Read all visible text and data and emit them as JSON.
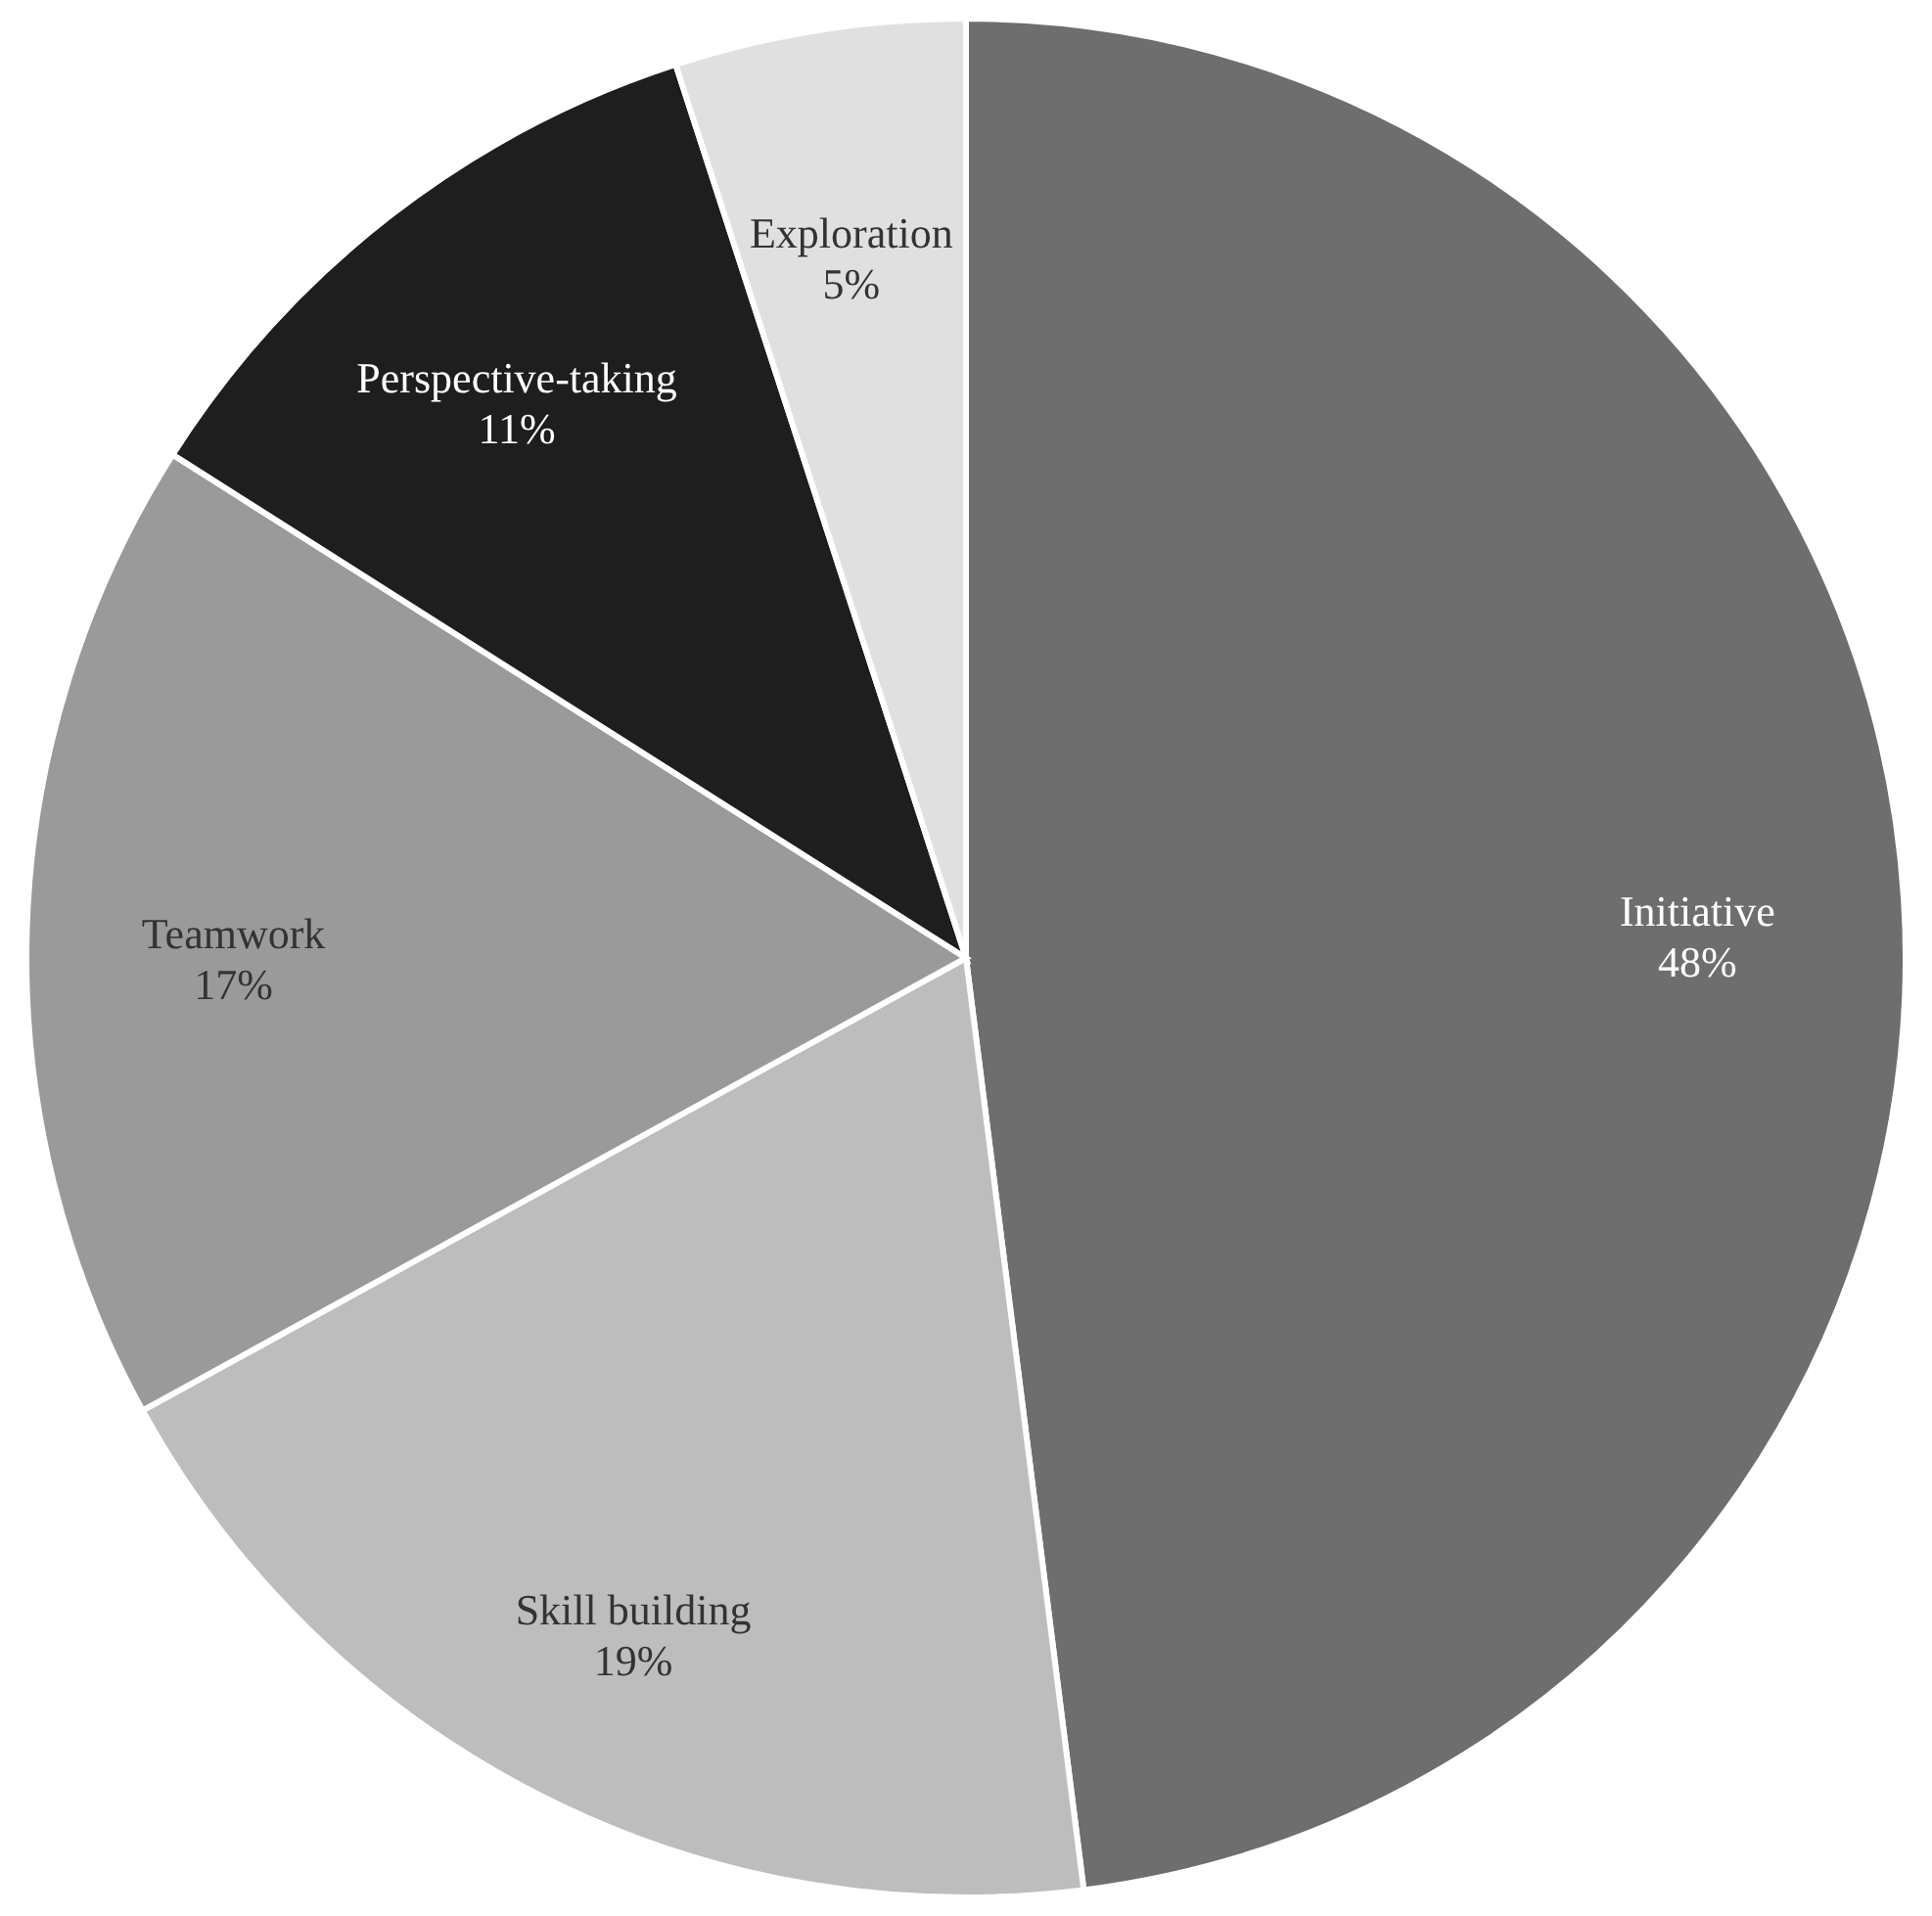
{
  "chart_data": {
    "type": "pie",
    "categories": [
      "Initiative",
      "Skill building",
      "Teamwork",
      "Perspective-taking",
      "Exploration"
    ],
    "values": [
      48,
      19,
      17,
      11,
      5
    ],
    "value_labels": [
      "48%",
      "19%",
      "17%",
      "11%",
      "5%"
    ],
    "colors": [
      "#6e6e6e",
      "#bdbdbd",
      "#9a9a9a",
      "#1e1e1e",
      "#e0e0e0"
    ]
  }
}
